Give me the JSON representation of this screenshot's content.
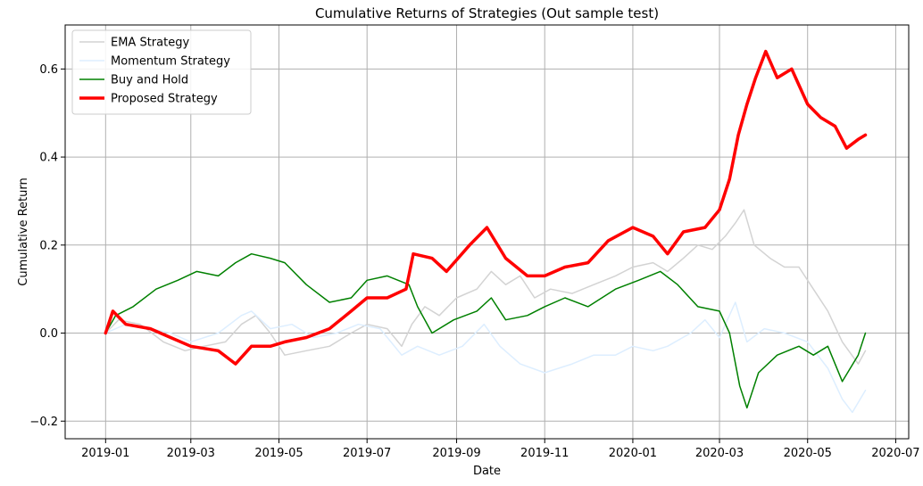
{
  "chart_data": {
    "type": "line",
    "title": "Cumulative Returns of Strategies (Out sample test)",
    "xlabel": "Date",
    "ylabel": "Cumulative Return",
    "grid": true,
    "legend_position": "top-left",
    "xlim": [
      "2018-12-04",
      "2020-07-10"
    ],
    "ylim": [
      -0.24,
      0.7
    ],
    "x_ticks": [
      {
        "date": "2019-01-01",
        "label": "2019-01"
      },
      {
        "date": "2019-03-01",
        "label": "2019-03"
      },
      {
        "date": "2019-05-01",
        "label": "2019-05"
      },
      {
        "date": "2019-07-01",
        "label": "2019-07"
      },
      {
        "date": "2019-09-01",
        "label": "2019-09"
      },
      {
        "date": "2019-11-01",
        "label": "2019-11"
      },
      {
        "date": "2020-01-01",
        "label": "2020-01"
      },
      {
        "date": "2020-03-01",
        "label": "2020-03"
      },
      {
        "date": "2020-05-01",
        "label": "2020-05"
      },
      {
        "date": "2020-07-01",
        "label": "2020-07"
      }
    ],
    "y_ticks": [
      {
        "value": -0.2,
        "label": "−0.2"
      },
      {
        "value": 0.0,
        "label": "0.0"
      },
      {
        "value": 0.2,
        "label": "0.2"
      },
      {
        "value": 0.4,
        "label": "0.4"
      },
      {
        "value": 0.6,
        "label": "0.6"
      }
    ],
    "series": [
      {
        "name": "EMA Strategy",
        "color": "#d3d3d3",
        "width": 1.5,
        "points": [
          [
            "2019-01-01",
            0.0
          ],
          [
            "2019-01-10",
            0.03
          ],
          [
            "2019-01-25",
            0.02
          ],
          [
            "2019-02-10",
            -0.02
          ],
          [
            "2019-02-25",
            -0.04
          ],
          [
            "2019-03-10",
            -0.03
          ],
          [
            "2019-03-25",
            -0.02
          ],
          [
            "2019-04-05",
            0.02
          ],
          [
            "2019-04-15",
            0.04
          ],
          [
            "2019-04-25",
            0.0
          ],
          [
            "2019-05-05",
            -0.05
          ],
          [
            "2019-05-20",
            -0.04
          ],
          [
            "2019-06-05",
            -0.03
          ],
          [
            "2019-06-20",
            0.0
          ],
          [
            "2019-07-01",
            0.02
          ],
          [
            "2019-07-15",
            0.01
          ],
          [
            "2019-07-25",
            -0.03
          ],
          [
            "2019-08-01",
            0.02
          ],
          [
            "2019-08-10",
            0.06
          ],
          [
            "2019-08-20",
            0.04
          ],
          [
            "2019-09-01",
            0.08
          ],
          [
            "2019-09-15",
            0.1
          ],
          [
            "2019-09-25",
            0.14
          ],
          [
            "2019-10-05",
            0.11
          ],
          [
            "2019-10-15",
            0.13
          ],
          [
            "2019-10-25",
            0.08
          ],
          [
            "2019-11-05",
            0.1
          ],
          [
            "2019-11-20",
            0.09
          ],
          [
            "2019-12-05",
            0.11
          ],
          [
            "2019-12-20",
            0.13
          ],
          [
            "2020-01-01",
            0.15
          ],
          [
            "2020-01-15",
            0.16
          ],
          [
            "2020-01-25",
            0.14
          ],
          [
            "2020-02-05",
            0.17
          ],
          [
            "2020-02-15",
            0.2
          ],
          [
            "2020-02-25",
            0.19
          ],
          [
            "2020-03-05",
            0.22
          ],
          [
            "2020-03-12",
            0.25
          ],
          [
            "2020-03-18",
            0.28
          ],
          [
            "2020-03-25",
            0.2
          ],
          [
            "2020-04-05",
            0.17
          ],
          [
            "2020-04-15",
            0.15
          ],
          [
            "2020-04-25",
            0.15
          ],
          [
            "2020-05-05",
            0.1
          ],
          [
            "2020-05-15",
            0.05
          ],
          [
            "2020-05-25",
            -0.02
          ],
          [
            "2020-06-05",
            -0.07
          ],
          [
            "2020-06-10",
            -0.04
          ]
        ]
      },
      {
        "name": "Momentum Strategy",
        "color": "#ddeeff",
        "width": 1.5,
        "points": [
          [
            "2019-01-01",
            0.0
          ],
          [
            "2019-01-15",
            0.02
          ],
          [
            "2019-02-01",
            0.01
          ],
          [
            "2019-02-15",
            0.0
          ],
          [
            "2019-03-01",
            -0.02
          ],
          [
            "2019-03-20",
            0.0
          ],
          [
            "2019-04-05",
            0.04
          ],
          [
            "2019-04-12",
            0.05
          ],
          [
            "2019-04-25",
            0.01
          ],
          [
            "2019-05-10",
            0.02
          ],
          [
            "2019-05-25",
            -0.01
          ],
          [
            "2019-06-10",
            0.0
          ],
          [
            "2019-06-25",
            0.02
          ],
          [
            "2019-07-10",
            0.01
          ],
          [
            "2019-07-25",
            -0.05
          ],
          [
            "2019-08-05",
            -0.03
          ],
          [
            "2019-08-20",
            -0.05
          ],
          [
            "2019-09-05",
            -0.03
          ],
          [
            "2019-09-20",
            0.02
          ],
          [
            "2019-10-01",
            -0.03
          ],
          [
            "2019-10-15",
            -0.07
          ],
          [
            "2019-11-01",
            -0.09
          ],
          [
            "2019-11-20",
            -0.07
          ],
          [
            "2019-12-05",
            -0.05
          ],
          [
            "2019-12-20",
            -0.05
          ],
          [
            "2020-01-01",
            -0.03
          ],
          [
            "2020-01-15",
            -0.04
          ],
          [
            "2020-01-25",
            -0.03
          ],
          [
            "2020-02-10",
            0.0
          ],
          [
            "2020-02-20",
            0.03
          ],
          [
            "2020-03-01",
            -0.01
          ],
          [
            "2020-03-12",
            0.07
          ],
          [
            "2020-03-20",
            -0.02
          ],
          [
            "2020-04-01",
            0.01
          ],
          [
            "2020-04-15",
            0.0
          ],
          [
            "2020-05-01",
            -0.02
          ],
          [
            "2020-05-15",
            -0.08
          ],
          [
            "2020-05-25",
            -0.15
          ],
          [
            "2020-06-01",
            -0.18
          ],
          [
            "2020-06-10",
            -0.13
          ]
        ]
      },
      {
        "name": "Buy and Hold",
        "color": "#008000",
        "width": 1.5,
        "points": [
          [
            "2019-01-01",
            0.0
          ],
          [
            "2019-01-08",
            0.04
          ],
          [
            "2019-01-20",
            0.06
          ],
          [
            "2019-02-05",
            0.1
          ],
          [
            "2019-02-20",
            0.12
          ],
          [
            "2019-03-05",
            0.14
          ],
          [
            "2019-03-20",
            0.13
          ],
          [
            "2019-04-01",
            0.16
          ],
          [
            "2019-04-12",
            0.18
          ],
          [
            "2019-04-25",
            0.17
          ],
          [
            "2019-05-05",
            0.16
          ],
          [
            "2019-05-20",
            0.11
          ],
          [
            "2019-06-05",
            0.07
          ],
          [
            "2019-06-20",
            0.08
          ],
          [
            "2019-07-01",
            0.12
          ],
          [
            "2019-07-15",
            0.13
          ],
          [
            "2019-07-30",
            0.11
          ],
          [
            "2019-08-05",
            0.06
          ],
          [
            "2019-08-15",
            0.0
          ],
          [
            "2019-08-30",
            0.03
          ],
          [
            "2019-09-15",
            0.05
          ],
          [
            "2019-09-25",
            0.08
          ],
          [
            "2019-10-05",
            0.03
          ],
          [
            "2019-10-20",
            0.04
          ],
          [
            "2019-11-01",
            0.06
          ],
          [
            "2019-11-15",
            0.08
          ],
          [
            "2019-12-01",
            0.06
          ],
          [
            "2019-12-20",
            0.1
          ],
          [
            "2020-01-05",
            0.12
          ],
          [
            "2020-01-20",
            0.14
          ],
          [
            "2020-02-01",
            0.11
          ],
          [
            "2020-02-15",
            0.06
          ],
          [
            "2020-03-01",
            0.05
          ],
          [
            "2020-03-08",
            0.0
          ],
          [
            "2020-03-15",
            -0.12
          ],
          [
            "2020-03-20",
            -0.17
          ],
          [
            "2020-03-28",
            -0.09
          ],
          [
            "2020-04-10",
            -0.05
          ],
          [
            "2020-04-25",
            -0.03
          ],
          [
            "2020-05-05",
            -0.05
          ],
          [
            "2020-05-15",
            -0.03
          ],
          [
            "2020-05-25",
            -0.11
          ],
          [
            "2020-06-05",
            -0.05
          ],
          [
            "2020-06-10",
            0.0
          ]
        ]
      },
      {
        "name": "Proposed Strategy",
        "color": "#ff0000",
        "width": 3.5,
        "points": [
          [
            "2019-01-01",
            0.0
          ],
          [
            "2019-01-06",
            0.05
          ],
          [
            "2019-01-15",
            0.02
          ],
          [
            "2019-02-01",
            0.01
          ],
          [
            "2019-02-15",
            -0.01
          ],
          [
            "2019-03-01",
            -0.03
          ],
          [
            "2019-03-20",
            -0.04
          ],
          [
            "2019-04-01",
            -0.07
          ],
          [
            "2019-04-12",
            -0.03
          ],
          [
            "2019-04-25",
            -0.03
          ],
          [
            "2019-05-05",
            -0.02
          ],
          [
            "2019-05-20",
            -0.01
          ],
          [
            "2019-06-05",
            0.01
          ],
          [
            "2019-06-20",
            0.05
          ],
          [
            "2019-07-01",
            0.08
          ],
          [
            "2019-07-15",
            0.08
          ],
          [
            "2019-07-28",
            0.1
          ],
          [
            "2019-08-02",
            0.18
          ],
          [
            "2019-08-15",
            0.17
          ],
          [
            "2019-08-25",
            0.14
          ],
          [
            "2019-09-10",
            0.2
          ],
          [
            "2019-09-22",
            0.24
          ],
          [
            "2019-10-05",
            0.17
          ],
          [
            "2019-10-20",
            0.13
          ],
          [
            "2019-11-01",
            0.13
          ],
          [
            "2019-11-15",
            0.15
          ],
          [
            "2019-12-01",
            0.16
          ],
          [
            "2019-12-15",
            0.21
          ],
          [
            "2020-01-01",
            0.24
          ],
          [
            "2020-01-15",
            0.22
          ],
          [
            "2020-01-25",
            0.18
          ],
          [
            "2020-02-05",
            0.23
          ],
          [
            "2020-02-20",
            0.24
          ],
          [
            "2020-03-01",
            0.28
          ],
          [
            "2020-03-08",
            0.35
          ],
          [
            "2020-03-14",
            0.45
          ],
          [
            "2020-03-20",
            0.52
          ],
          [
            "2020-03-26",
            0.58
          ],
          [
            "2020-04-02",
            0.64
          ],
          [
            "2020-04-10",
            0.58
          ],
          [
            "2020-04-20",
            0.6
          ],
          [
            "2020-05-01",
            0.52
          ],
          [
            "2020-05-10",
            0.49
          ],
          [
            "2020-05-20",
            0.47
          ],
          [
            "2020-05-28",
            0.42
          ],
          [
            "2020-06-05",
            0.44
          ],
          [
            "2020-06-10",
            0.45
          ]
        ]
      }
    ]
  }
}
